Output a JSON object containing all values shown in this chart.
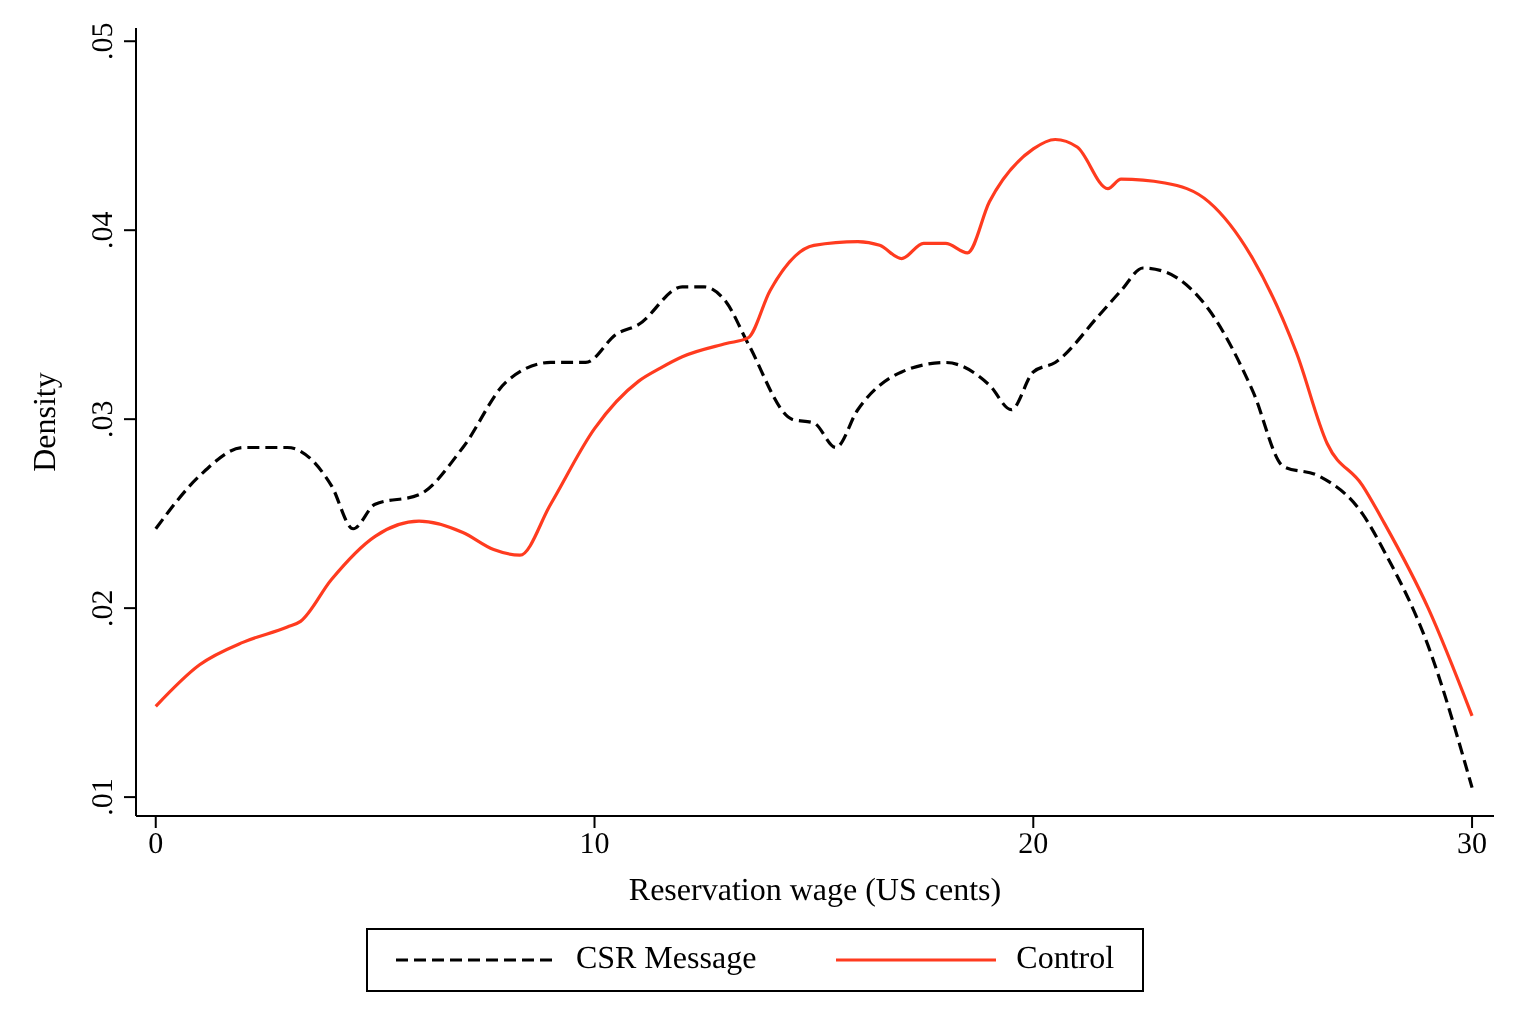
{
  "chart_data": {
    "type": "line",
    "xlabel": "Reservation wage (US cents)",
    "ylabel": "Density",
    "xlim": [
      -0.45,
      30.5
    ],
    "xticks": [
      0,
      10,
      20,
      30
    ],
    "ylim": [
      0.009,
      0.0507
    ],
    "yticks": [
      {
        "value": 0.01,
        "label": ".01"
      },
      {
        "value": 0.02,
        "label": ".02"
      },
      {
        "value": 0.03,
        "label": ".03"
      },
      {
        "value": 0.04,
        "label": ".04"
      },
      {
        "value": 0.05,
        "label": ".05"
      }
    ],
    "grid": false,
    "legend": "bottom",
    "marker": "none",
    "series": [
      {
        "name": "CSR Message",
        "color": "#000000",
        "line_style": "dashed",
        "x": [
          0,
          1,
          2,
          3,
          4,
          4.5,
          5,
          6,
          7,
          8,
          9,
          9.8,
          10.5,
          11,
          12,
          12.5,
          13,
          13.5,
          14.5,
          15,
          15.5,
          16,
          17,
          18,
          19,
          19.5,
          20,
          20.5,
          21.5,
          22,
          22.5,
          23,
          24,
          25,
          25.7,
          26.5,
          27.5,
          28,
          29,
          30
        ],
        "values": [
          0.0242,
          0.027,
          0.0285,
          0.0285,
          0.0265,
          0.0242,
          0.0255,
          0.026,
          0.0285,
          0.032,
          0.033,
          0.033,
          0.0345,
          0.035,
          0.037,
          0.037,
          0.0362,
          0.034,
          0.03,
          0.0298,
          0.0285,
          0.0305,
          0.0325,
          0.033,
          0.0318,
          0.0305,
          0.0325,
          0.033,
          0.0355,
          0.0368,
          0.038,
          0.0378,
          0.0358,
          0.0315,
          0.0275,
          0.027,
          0.025,
          0.023,
          0.018,
          0.0105
        ]
      },
      {
        "name": "Control",
        "color": "#ff3b1f",
        "line_style": "solid",
        "x": [
          0,
          1,
          2,
          3,
          3.3,
          4,
          5,
          6,
          7,
          7.7,
          8.3,
          9,
          10,
          11,
          11.5,
          12,
          13,
          13.5,
          14,
          15,
          16,
          16.5,
          17,
          17.5,
          18,
          18.5,
          19,
          20,
          20.5,
          21,
          21.7,
          22,
          23,
          24,
          25,
          26,
          26.7,
          27.5,
          28,
          29,
          30
        ],
        "values": [
          0.0148,
          0.017,
          0.0182,
          0.019,
          0.0193,
          0.0215,
          0.0238,
          0.0246,
          0.024,
          0.0231,
          0.0228,
          0.0255,
          0.0295,
          0.032,
          0.0327,
          0.0333,
          0.034,
          0.0343,
          0.0368,
          0.0392,
          0.0394,
          0.0392,
          0.0385,
          0.0393,
          0.0393,
          0.0388,
          0.0415,
          0.0443,
          0.0448,
          0.0444,
          0.0422,
          0.0427,
          0.0425,
          0.0415,
          0.0385,
          0.0335,
          0.0287,
          0.0265,
          0.0245,
          0.02,
          0.0143
        ]
      }
    ]
  }
}
